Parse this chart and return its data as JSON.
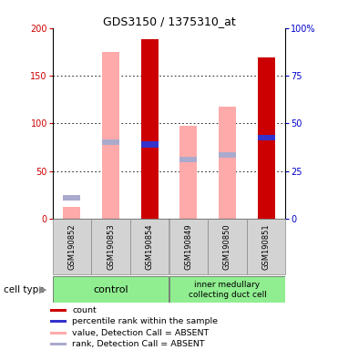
{
  "title": "GDS3150 / 1375310_at",
  "samples": [
    "GSM190852",
    "GSM190853",
    "GSM190854",
    "GSM190849",
    "GSM190850",
    "GSM190851"
  ],
  "value_absent": [
    12,
    175,
    0,
    97,
    118,
    0
  ],
  "rank_absent": [
    22,
    80,
    0,
    62,
    67,
    0
  ],
  "count": [
    0,
    0,
    188,
    0,
    0,
    169
  ],
  "percentile": [
    0,
    0,
    78,
    0,
    0,
    85
  ],
  "left_ylim": [
    0,
    200
  ],
  "left_yticks": [
    0,
    50,
    100,
    150,
    200
  ],
  "right_yticklabels": [
    "0",
    "25",
    "50",
    "75",
    "100%"
  ],
  "color_count": "#cc0000",
  "color_percentile": "#3333cc",
  "color_value_absent": "#ffaaaa",
  "color_rank_absent": "#aaaacc",
  "bg_color": "white",
  "group_bg": "#90ee90",
  "sample_bg": "#d3d3d3",
  "left_tick_color": "#cc0000",
  "right_tick_color": "#0000cc",
  "legend_items": [
    [
      "#cc0000",
      "count"
    ],
    [
      "#3333cc",
      "percentile rank within the sample"
    ],
    [
      "#ffaaaa",
      "value, Detection Call = ABSENT"
    ],
    [
      "#aaaacc",
      "rank, Detection Call = ABSENT"
    ]
  ]
}
